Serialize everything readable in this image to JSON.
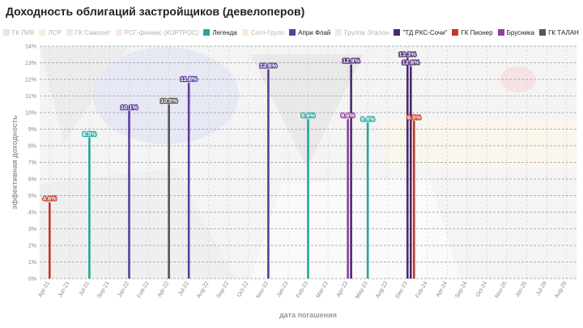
{
  "chart_data": {
    "type": "bar",
    "title": "Доходность облигаций застройщиков (девелоперов)",
    "xlabel": "дата погашения",
    "ylabel": "эффективная доходность",
    "ylim": [
      0,
      14
    ],
    "yticks": [
      "0%",
      "1%",
      "2%",
      "3%",
      "4%",
      "5%",
      "6%",
      "7%",
      "8%",
      "9%",
      "10%",
      "11%",
      "12%",
      "13%",
      "14%"
    ],
    "xticks": [
      "Apr-21",
      "Jun-21",
      "Jul-21",
      "Sep-21",
      "Jan-22",
      "Feb-22",
      "Apr-22",
      "Jul-22",
      "Aug-22",
      "Sep-22",
      "Oct-22",
      "Nov-22",
      "Jan-23",
      "Feb-23",
      "Mar-23",
      "Apr-23",
      "May-23",
      "Aug-23",
      "Dec-23",
      "Feb-24",
      "Apr-24",
      "Sep-24",
      "Oct-24",
      "Nov-25",
      "Jan-26",
      "Jul-29",
      "Aug-29"
    ],
    "grid": true,
    "legend_position": "top",
    "legend": [
      {
        "name": "ГК ПИК",
        "color": "#9ec1e0",
        "active": false
      },
      {
        "name": "ЛСР",
        "color": "#f4d58d",
        "active": false
      },
      {
        "name": "ГК Самолет",
        "color": "#b7d9a8",
        "active": false
      },
      {
        "name": "РСГ-финанс (КОРТРОС)",
        "color": "#f2b8c6",
        "active": false
      },
      {
        "name": "Легенда",
        "color": "#26a69a",
        "active": true
      },
      {
        "name": "Сэтл-Групп",
        "color": "#f5c58a",
        "active": false
      },
      {
        "name": "Апри Флай",
        "color": "#5b3f9e",
        "active": true
      },
      {
        "name": "Группа Эталон",
        "color": "#a8d8c8",
        "active": false
      },
      {
        "name": "\"ТД РКС-Сочи\"",
        "color": "#4a2a6e",
        "active": true
      },
      {
        "name": "ГК Пионер",
        "color": "#c0392b",
        "active": true
      },
      {
        "name": "Брусника",
        "color": "#8e3fa0",
        "active": true
      },
      {
        "name": "ГК ТАЛАН",
        "color": "#555555",
        "active": true
      }
    ],
    "series": [
      {
        "name": "ГК Пионер",
        "color": "#c0392b",
        "points": [
          {
            "x": "Apr-21",
            "y": 4.6,
            "label": "4.6%"
          }
        ]
      },
      {
        "name": "Легенда",
        "color": "#26a69a",
        "points": [
          {
            "x": "Jul-21",
            "y": 8.5,
            "label": "8.5%"
          },
          {
            "x": "Feb-23",
            "y": 9.6,
            "label": "9.6%"
          },
          {
            "x": "May-23",
            "y": 9.4,
            "label": "9.4%"
          }
        ]
      },
      {
        "name": "Апри Флай",
        "color": "#5b3f9e",
        "points": [
          {
            "x": "Jan-22",
            "y": 10.1,
            "label": "10.1%"
          },
          {
            "x": "Jul-22",
            "y": 11.8,
            "label": "11.8%"
          },
          {
            "x": "Nov-22",
            "y": 12.6,
            "label": "12.6%"
          }
        ]
      },
      {
        "name": "ГК ТАЛАН",
        "color": "#555555",
        "points": [
          {
            "x": "Apr-22",
            "y": 10.5,
            "label": "10.5%"
          }
        ]
      },
      {
        "name": "Брусника",
        "color": "#8e3fa0",
        "points": [
          {
            "x": "Apr-23",
            "y": 9.6,
            "label": "9.6%"
          }
        ]
      },
      {
        "name": "\"ТД РКС-Сочи\"",
        "color": "#4a2a6e",
        "points": [
          {
            "x": "Apr-23",
            "y": 12.9,
            "label": "12.9%"
          },
          {
            "x": "Dec-23",
            "y": 13.3,
            "label": "13.3%"
          },
          {
            "x": "Dec-23",
            "y": 12.8,
            "label": "12.8%"
          }
        ]
      },
      {
        "name": "ГК Пионер",
        "color": "#c0392b",
        "points": [
          {
            "x": "Dec-23",
            "y": 9.5,
            "label": "9.5%"
          }
        ]
      }
    ]
  }
}
